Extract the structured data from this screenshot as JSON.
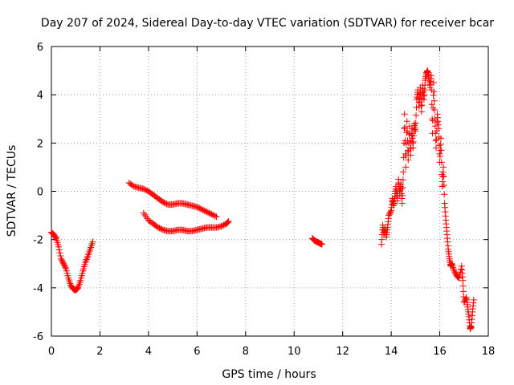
{
  "chart_data": {
    "type": "scatter",
    "title": "Day 207 of 2024, Sidereal Day-to-day VTEC variation (SDTVAR) for receiver bcar",
    "xlabel": "GPS time / hours",
    "ylabel": "SDTVAR / TECUs",
    "xlim": [
      0,
      18
    ],
    "ylim": [
      -6,
      6
    ],
    "xticks": [
      "0",
      "2",
      "4",
      "6",
      "8",
      "10",
      "12",
      "14",
      "16",
      "18"
    ],
    "yticks": [
      "6",
      "4",
      "2",
      "0",
      "-2",
      "-4",
      "-6"
    ],
    "grid": true,
    "marker": "+",
    "marker_color": "#ff0000",
    "series": [
      {
        "name": "segment-1",
        "points": [
          [
            0.0,
            -1.7
          ],
          [
            0.1,
            -1.8
          ],
          [
            0.2,
            -1.95
          ],
          [
            0.3,
            -2.3
          ],
          [
            0.4,
            -2.8
          ],
          [
            0.5,
            -3.0
          ],
          [
            0.6,
            -3.2
          ],
          [
            0.7,
            -3.6
          ],
          [
            0.8,
            -3.9
          ],
          [
            0.9,
            -4.05
          ],
          [
            1.0,
            -4.1
          ],
          [
            1.1,
            -4.0
          ],
          [
            1.2,
            -3.7
          ],
          [
            1.3,
            -3.3
          ],
          [
            1.4,
            -2.95
          ],
          [
            1.5,
            -2.7
          ],
          [
            1.6,
            -2.4
          ],
          [
            1.7,
            -2.1
          ]
        ]
      },
      {
        "name": "segment-2-upper",
        "points": [
          [
            3.2,
            0.35
          ],
          [
            3.4,
            0.2
          ],
          [
            3.6,
            0.15
          ],
          [
            3.8,
            0.1
          ],
          [
            4.0,
            0.0
          ],
          [
            4.2,
            -0.15
          ],
          [
            4.4,
            -0.3
          ],
          [
            4.6,
            -0.45
          ],
          [
            4.8,
            -0.55
          ],
          [
            5.0,
            -0.55
          ],
          [
            5.2,
            -0.5
          ],
          [
            5.4,
            -0.5
          ],
          [
            5.6,
            -0.55
          ],
          [
            5.8,
            -0.6
          ],
          [
            6.0,
            -0.65
          ],
          [
            6.2,
            -0.75
          ],
          [
            6.4,
            -0.85
          ],
          [
            6.6,
            -0.95
          ],
          [
            6.8,
            -1.05
          ]
        ]
      },
      {
        "name": "segment-2-lower",
        "points": [
          [
            3.8,
            -0.9
          ],
          [
            4.0,
            -1.2
          ],
          [
            4.2,
            -1.35
          ],
          [
            4.4,
            -1.5
          ],
          [
            4.6,
            -1.6
          ],
          [
            4.8,
            -1.65
          ],
          [
            5.0,
            -1.65
          ],
          [
            5.2,
            -1.6
          ],
          [
            5.4,
            -1.6
          ],
          [
            5.6,
            -1.65
          ],
          [
            5.8,
            -1.65
          ],
          [
            6.0,
            -1.6
          ],
          [
            6.2,
            -1.55
          ],
          [
            6.4,
            -1.5
          ],
          [
            6.6,
            -1.5
          ],
          [
            6.8,
            -1.5
          ],
          [
            7.0,
            -1.45
          ],
          [
            7.2,
            -1.35
          ],
          [
            7.3,
            -1.25
          ]
        ]
      },
      {
        "name": "segment-3",
        "points": [
          [
            10.75,
            -1.95
          ],
          [
            10.85,
            -2.05
          ],
          [
            10.95,
            -2.1
          ],
          [
            11.05,
            -2.15
          ],
          [
            11.15,
            -2.2
          ]
        ]
      },
      {
        "name": "segment-4",
        "points": [
          [
            13.6,
            -2.2
          ],
          [
            13.65,
            -1.4
          ],
          [
            13.7,
            -1.8
          ],
          [
            13.75,
            -1.5
          ],
          [
            13.8,
            -1.9
          ],
          [
            13.85,
            -1.5
          ],
          [
            13.9,
            -1.0
          ],
          [
            14.0,
            -0.8
          ],
          [
            14.05,
            -0.3
          ],
          [
            14.1,
            -0.6
          ],
          [
            14.15,
            -0.2
          ],
          [
            14.2,
            0.2
          ],
          [
            14.25,
            -0.4
          ],
          [
            14.3,
            0.5
          ],
          [
            14.35,
            -0.1
          ],
          [
            14.4,
            0.3
          ],
          [
            14.45,
            -0.5
          ],
          [
            14.5,
            0.8
          ],
          [
            14.55,
            3.2
          ],
          [
            14.6,
            1.0
          ],
          [
            14.65,
            2.9
          ],
          [
            14.7,
            1.3
          ],
          [
            14.75,
            2.7
          ],
          [
            14.8,
            1.5
          ],
          [
            14.85,
            2.6
          ],
          [
            14.9,
            1.8
          ],
          [
            14.95,
            2.8
          ],
          [
            15.0,
            2.5
          ],
          [
            15.05,
            3.8
          ],
          [
            15.1,
            4.2
          ],
          [
            15.15,
            3.5
          ],
          [
            15.2,
            4.3
          ],
          [
            15.25,
            3.3
          ],
          [
            15.3,
            4.4
          ],
          [
            15.35,
            3.8
          ],
          [
            15.4,
            4.6
          ],
          [
            15.45,
            4.9
          ],
          [
            15.5,
            5.0
          ],
          [
            15.55,
            4.7
          ],
          [
            15.6,
            4.3
          ],
          [
            15.65,
            4.8
          ],
          [
            15.7,
            2.4
          ],
          [
            15.75,
            4.5
          ],
          [
            15.8,
            3.0
          ],
          [
            15.85,
            1.8
          ],
          [
            15.9,
            3.2
          ],
          [
            15.95,
            2.6
          ],
          [
            16.0,
            1.2
          ],
          [
            16.05,
            2.2
          ],
          [
            16.1,
            0.2
          ],
          [
            16.15,
            1.0
          ],
          [
            16.2,
            -0.5
          ],
          [
            16.25,
            -1.2
          ],
          [
            16.3,
            -1.8
          ],
          [
            16.35,
            -2.4
          ],
          [
            16.4,
            -2.8
          ],
          [
            16.45,
            -3.1
          ],
          [
            16.5,
            -3.0
          ],
          [
            16.6,
            -3.3
          ],
          [
            16.7,
            -3.5
          ],
          [
            16.8,
            -3.6
          ],
          [
            16.9,
            -3.1
          ],
          [
            16.95,
            -3.7
          ],
          [
            17.0,
            -4.6
          ],
          [
            17.1,
            -4.4
          ],
          [
            17.15,
            -4.8
          ],
          [
            17.2,
            -5.2
          ],
          [
            17.25,
            -5.7
          ],
          [
            17.3,
            -5.6
          ],
          [
            17.35,
            -5.0
          ],
          [
            17.4,
            -4.5
          ]
        ]
      }
    ]
  }
}
